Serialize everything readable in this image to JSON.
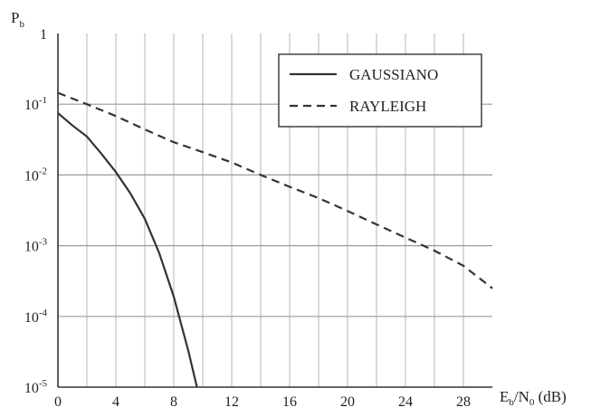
{
  "chart_data": {
    "type": "line",
    "title": "",
    "xlabel": {
      "main": "E",
      "sub1": "b",
      "mid": "/N",
      "sub2": "0",
      "unit": " (dB)"
    },
    "ylabel": {
      "main": "P",
      "sub": "b"
    },
    "xlim": [
      0,
      30
    ],
    "ylim": [
      1e-05,
      1
    ],
    "y_scale": "log",
    "grid": true,
    "x_ticks": [
      0,
      4,
      8,
      12,
      16,
      20,
      24,
      28
    ],
    "x_tick_labels": [
      "0",
      "4",
      "8",
      "12",
      "16",
      "20",
      "24",
      "28"
    ],
    "y_ticks": [
      {
        "value": 1,
        "base": "1",
        "exp": ""
      },
      {
        "value": 0.1,
        "base": "10",
        "exp": "-1"
      },
      {
        "value": 0.01,
        "base": "10",
        "exp": "-2"
      },
      {
        "value": 0.001,
        "base": "10",
        "exp": "-3"
      },
      {
        "value": 0.0001,
        "base": "10",
        "exp": "-4"
      },
      {
        "value": 1e-05,
        "base": "10",
        "exp": "-5"
      }
    ],
    "legend_position": "top-right",
    "series": [
      {
        "name": "GAUSSIANO",
        "style": "solid",
        "x": [
          0,
          1,
          2,
          3,
          4,
          5,
          6,
          7,
          8,
          9,
          9.6
        ],
        "y": [
          0.075,
          0.05,
          0.035,
          0.02,
          0.011,
          0.0055,
          0.0024,
          0.00078,
          0.00019,
          3.3e-05,
          1e-05
        ]
      },
      {
        "name": "RAYLEIGH",
        "style": "dashed",
        "x": [
          0,
          2,
          4,
          6,
          8,
          10,
          12,
          14,
          16,
          18,
          20,
          22,
          24,
          26,
          28,
          30
        ],
        "y": [
          0.145,
          0.1,
          0.068,
          0.044,
          0.029,
          0.021,
          0.015,
          0.01,
          0.0068,
          0.0047,
          0.0031,
          0.002,
          0.0013,
          0.00085,
          0.00052,
          0.00025
        ]
      }
    ]
  }
}
